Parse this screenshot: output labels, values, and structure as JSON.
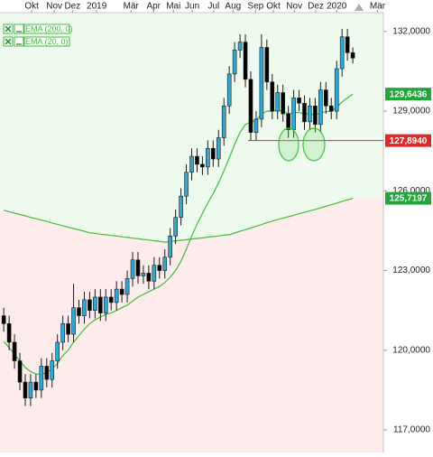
{
  "chart_data": {
    "type": "candlestick",
    "xlim": [
      -0.7,
      70.7
    ],
    "xticks": [
      {
        "value": 5.2,
        "label": "Okt"
      },
      {
        "value": 9.4,
        "label": "Nov"
      },
      {
        "value": 12.8,
        "label": "Dez"
      },
      {
        "value": 17.3,
        "label": "2019"
      },
      {
        "value": 23.7,
        "label": "Mär"
      },
      {
        "value": 27.9,
        "label": "Apr"
      },
      {
        "value": 31.6,
        "label": "Mai"
      },
      {
        "value": 35.1,
        "label": "Jun"
      },
      {
        "value": 39.1,
        "label": "Jul"
      },
      {
        "value": 42.7,
        "label": "Aug"
      },
      {
        "value": 46.9,
        "label": "Sep"
      },
      {
        "value": 50.2,
        "label": "Okt"
      },
      {
        "value": 54.1,
        "label": "Nov"
      },
      {
        "value": 58.1,
        "label": "Dez"
      },
      {
        "value": 62.0,
        "label": "2020"
      },
      {
        "value": 69.6,
        "label": "Mär"
      }
    ],
    "ylim": [
      116.15,
      132.71
    ],
    "yticks": [
      {
        "value": 132,
        "label": "132,0000"
      },
      {
        "value": 129,
        "label": "129,0000"
      },
      {
        "value": 126,
        "label": "126,0000"
      },
      {
        "value": 123,
        "label": "123,0000"
      },
      {
        "value": 120,
        "label": "120,0000"
      },
      {
        "value": 117,
        "label": "117,0000"
      }
    ],
    "up_color": "#2ea9d6",
    "down_color": "#000000",
    "above_color": "#effaef",
    "below_color": "#fdeceb",
    "candles": {
      "open": [
        121.3,
        121.0,
        120.3,
        119.6,
        118.8,
        118.2,
        118.8,
        118.5,
        119.4,
        118.9,
        119.6,
        120.3,
        121.0,
        120.6,
        121.6,
        121.3,
        121.9,
        121.5,
        122.0,
        121.4,
        122.0,
        121.8,
        122.3,
        122.1,
        122.7,
        123.4,
        122.8,
        122.9,
        122.6,
        123.2,
        123.0,
        123.5,
        124.3,
        125.0,
        125.8,
        126.7,
        127.3,
        127.0,
        126.9,
        127.6,
        127.2,
        128.0,
        129.2,
        130.4,
        131.3,
        131.6,
        130.2,
        128.2,
        128.7,
        131.4,
        130.1,
        129.0,
        129.7,
        128.9,
        128.3,
        129.5,
        129.3,
        128.6,
        129.2,
        128.5,
        129.8,
        129.2,
        129.0,
        130.6,
        131.8,
        131.2
      ],
      "high": [
        121.6,
        121.3,
        120.6,
        119.9,
        119.1,
        119.1,
        119.1,
        119.7,
        119.7,
        119.9,
        120.6,
        121.3,
        121.3,
        122.5,
        121.9,
        122.2,
        122.2,
        122.3,
        122.3,
        122.3,
        122.3,
        122.6,
        122.6,
        123.0,
        123.7,
        123.7,
        123.2,
        123.2,
        123.5,
        123.5,
        123.8,
        124.6,
        125.3,
        126.1,
        127.0,
        127.6,
        127.6,
        127.3,
        127.9,
        127.9,
        128.3,
        129.5,
        130.7,
        131.6,
        131.9,
        131.9,
        130.5,
        129.0,
        131.9,
        131.7,
        130.4,
        130.0,
        130.0,
        129.2,
        129.8,
        129.8,
        129.6,
        129.5,
        129.5,
        130.1,
        130.1,
        129.5,
        130.9,
        132.1,
        132.1,
        131.4
      ],
      "low": [
        120.7,
        120.0,
        119.3,
        118.5,
        117.9,
        117.9,
        118.2,
        118.2,
        118.6,
        118.6,
        119.3,
        120.0,
        120.3,
        120.3,
        121.0,
        121.0,
        121.2,
        121.2,
        121.1,
        121.1,
        121.5,
        121.5,
        121.8,
        121.8,
        122.4,
        122.5,
        122.5,
        122.3,
        122.3,
        122.7,
        122.7,
        123.2,
        124.0,
        124.7,
        125.5,
        126.4,
        126.7,
        126.6,
        126.6,
        126.9,
        126.9,
        127.7,
        128.9,
        130.1,
        131.0,
        129.9,
        127.9,
        127.9,
        128.4,
        129.8,
        128.7,
        128.7,
        128.6,
        128.0,
        128.0,
        129.0,
        128.3,
        128.3,
        128.2,
        128.2,
        128.9,
        128.7,
        128.7,
        130.3,
        130.9,
        130.8
      ],
      "close": [
        121.0,
        120.3,
        119.6,
        118.8,
        118.2,
        118.8,
        118.5,
        119.4,
        118.9,
        119.6,
        120.3,
        121.0,
        120.6,
        121.6,
        121.3,
        121.9,
        121.5,
        122.0,
        121.4,
        122.0,
        121.8,
        122.3,
        122.1,
        122.7,
        123.4,
        122.8,
        122.9,
        122.6,
        123.2,
        123.0,
        123.5,
        124.3,
        125.0,
        125.8,
        126.7,
        127.3,
        127.0,
        126.9,
        127.6,
        127.2,
        128.0,
        129.2,
        130.4,
        131.3,
        131.6,
        130.2,
        128.2,
        128.7,
        131.4,
        130.1,
        129.0,
        129.7,
        128.9,
        128.3,
        129.5,
        129.3,
        128.6,
        129.2,
        128.5,
        129.8,
        129.2,
        129.0,
        130.6,
        131.8,
        131.2,
        131.0
      ]
    },
    "series": [
      {
        "name": "EMA (200, 0)",
        "color": "#3cbf3c",
        "last_label": "125,7197",
        "values": [
          125.27,
          125.22,
          125.16,
          125.11,
          125.06,
          125.0,
          124.95,
          124.9,
          124.85,
          124.79,
          124.74,
          124.69,
          124.63,
          124.58,
          124.53,
          124.48,
          124.42,
          124.4,
          124.37,
          124.35,
          124.32,
          124.3,
          124.27,
          124.25,
          124.22,
          124.2,
          124.17,
          124.15,
          124.12,
          124.1,
          124.07,
          124.09,
          124.12,
          124.14,
          124.16,
          124.19,
          124.21,
          124.23,
          124.26,
          124.28,
          124.3,
          124.33,
          124.35,
          124.41,
          124.48,
          124.54,
          124.6,
          124.67,
          124.73,
          124.8,
          124.86,
          124.92,
          124.97,
          125.03,
          125.08,
          125.14,
          125.19,
          125.25,
          125.3,
          125.36,
          125.42,
          125.48,
          125.54,
          125.6,
          125.66,
          125.7197
        ]
      },
      {
        "name": "EMA (20, 0)",
        "color": "#3cbf3c",
        "last_label": "129,6436",
        "values": [
          120.33,
          120.1,
          119.85,
          119.6,
          119.35,
          119.2,
          119.1,
          119.1,
          119.15,
          119.3,
          119.5,
          119.8,
          120.0,
          120.3,
          120.55,
          120.8,
          121.0,
          121.15,
          121.25,
          121.35,
          121.4,
          121.5,
          121.6,
          121.7,
          121.85,
          122.0,
          122.1,
          122.2,
          122.3,
          122.4,
          122.55,
          122.75,
          123.0,
          123.35,
          123.8,
          124.3,
          124.75,
          125.15,
          125.55,
          125.9,
          126.3,
          126.75,
          127.25,
          127.75,
          128.2,
          128.5,
          128.6,
          128.65,
          128.9,
          129.0,
          129.0,
          129.05,
          129.0,
          128.9,
          128.95,
          128.95,
          128.9,
          128.9,
          128.85,
          128.95,
          128.98,
          129.0,
          129.15,
          129.35,
          129.5,
          129.6436
        ]
      }
    ],
    "level": {
      "value": 127.894,
      "label": "127,8940",
      "color": "#e02828"
    }
  }
}
